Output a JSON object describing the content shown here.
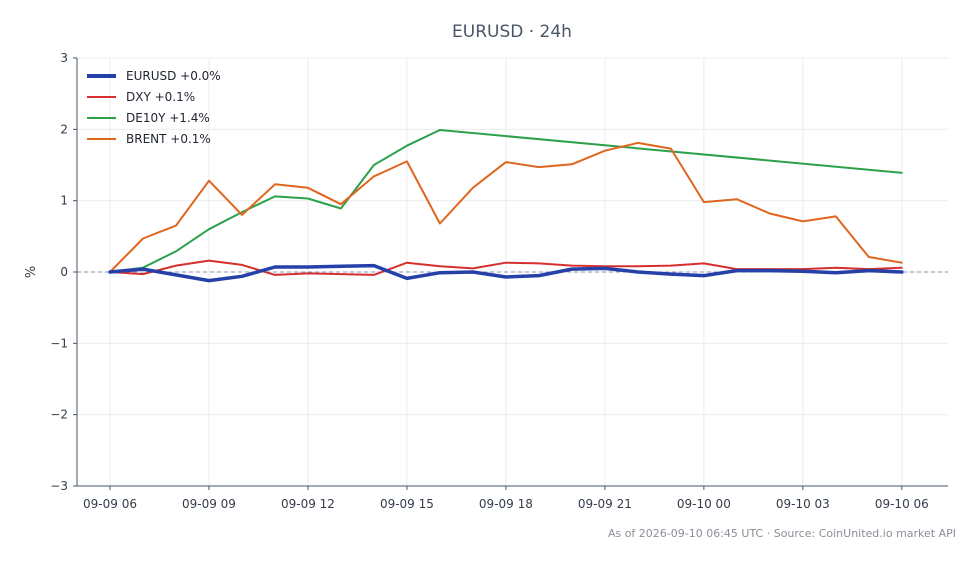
{
  "chart_data": {
    "type": "line",
    "title": "EURUSD · 24h",
    "ylabel": "%",
    "xlabel": "",
    "ylim": [
      -3,
      3
    ],
    "yticks": [
      -3,
      -2,
      -1,
      0,
      1,
      2,
      3
    ],
    "ytick_labels": [
      "−3",
      "−2",
      "−1",
      "0",
      "1",
      "2",
      "3"
    ],
    "xlim": [
      -1,
      25.4
    ],
    "xticks": [
      0,
      3,
      6,
      9,
      12,
      15,
      18,
      21,
      24
    ],
    "xtick_labels": [
      "09-09 06",
      "09-09 09",
      "09-09 12",
      "09-09 15",
      "09-09 18",
      "09-09 21",
      "09-10 00",
      "09-10 03",
      "09-10 06"
    ],
    "grid": true,
    "legend_position": "top-left",
    "zero_line": true,
    "footnote": "As of 2026-09-10 06:45 UTC · Source: CoinUnited.io market API",
    "series": [
      {
        "name": "EURUSD +0.0%",
        "color": "#2541a8",
        "x": [
          0,
          1,
          2,
          3,
          4,
          5,
          6,
          7,
          8,
          9,
          10,
          11,
          12,
          13,
          14,
          15,
          16,
          17,
          18,
          19,
          20,
          21,
          22,
          23,
          24
        ],
        "values": [
          0.0,
          0.04,
          -0.04,
          -0.12,
          -0.06,
          0.07,
          0.07,
          0.08,
          0.09,
          -0.09,
          -0.01,
          0.0,
          -0.07,
          -0.05,
          0.04,
          0.05,
          0.0,
          -0.03,
          -0.05,
          0.02,
          0.02,
          0.01,
          -0.01,
          0.02,
          0.0
        ]
      },
      {
        "name": "DXY +0.1%",
        "color": "#d62f2f",
        "x": [
          0,
          1,
          2,
          3,
          4,
          5,
          6,
          7,
          8,
          9,
          10,
          11,
          12,
          13,
          14,
          15,
          16,
          17,
          18,
          19,
          20,
          21,
          22,
          23,
          24
        ],
        "values": [
          0.0,
          -0.03,
          0.09,
          0.16,
          0.1,
          -0.04,
          -0.02,
          -0.03,
          -0.04,
          0.13,
          0.08,
          0.05,
          0.13,
          0.12,
          0.09,
          0.08,
          0.08,
          0.09,
          0.12,
          0.04,
          0.04,
          0.04,
          0.06,
          0.04,
          0.06
        ]
      },
      {
        "name": "DE10Y +1.4%",
        "color": "#2ca14a",
        "x": [
          0,
          1,
          2,
          3,
          4,
          5,
          6,
          7,
          8,
          9,
          10,
          24
        ],
        "values": [
          0.0,
          0.06,
          0.29,
          0.6,
          0.84,
          1.06,
          1.03,
          0.89,
          1.5,
          1.77,
          1.99,
          1.39
        ]
      },
      {
        "name": "BRENT +0.1%",
        "color": "#e0651f",
        "x": [
          0,
          1,
          2,
          3,
          4,
          5,
          6,
          7,
          8,
          9,
          10,
          11,
          12,
          13,
          14,
          15,
          16,
          17,
          18,
          19,
          20,
          21,
          22,
          23,
          24
        ],
        "values": [
          0.0,
          0.47,
          0.65,
          1.28,
          0.8,
          1.23,
          1.18,
          0.95,
          1.34,
          1.55,
          0.68,
          1.18,
          1.54,
          1.47,
          1.51,
          1.7,
          1.81,
          1.73,
          0.98,
          1.02,
          0.82,
          0.71,
          0.78,
          0.21,
          0.13
        ]
      }
    ]
  }
}
